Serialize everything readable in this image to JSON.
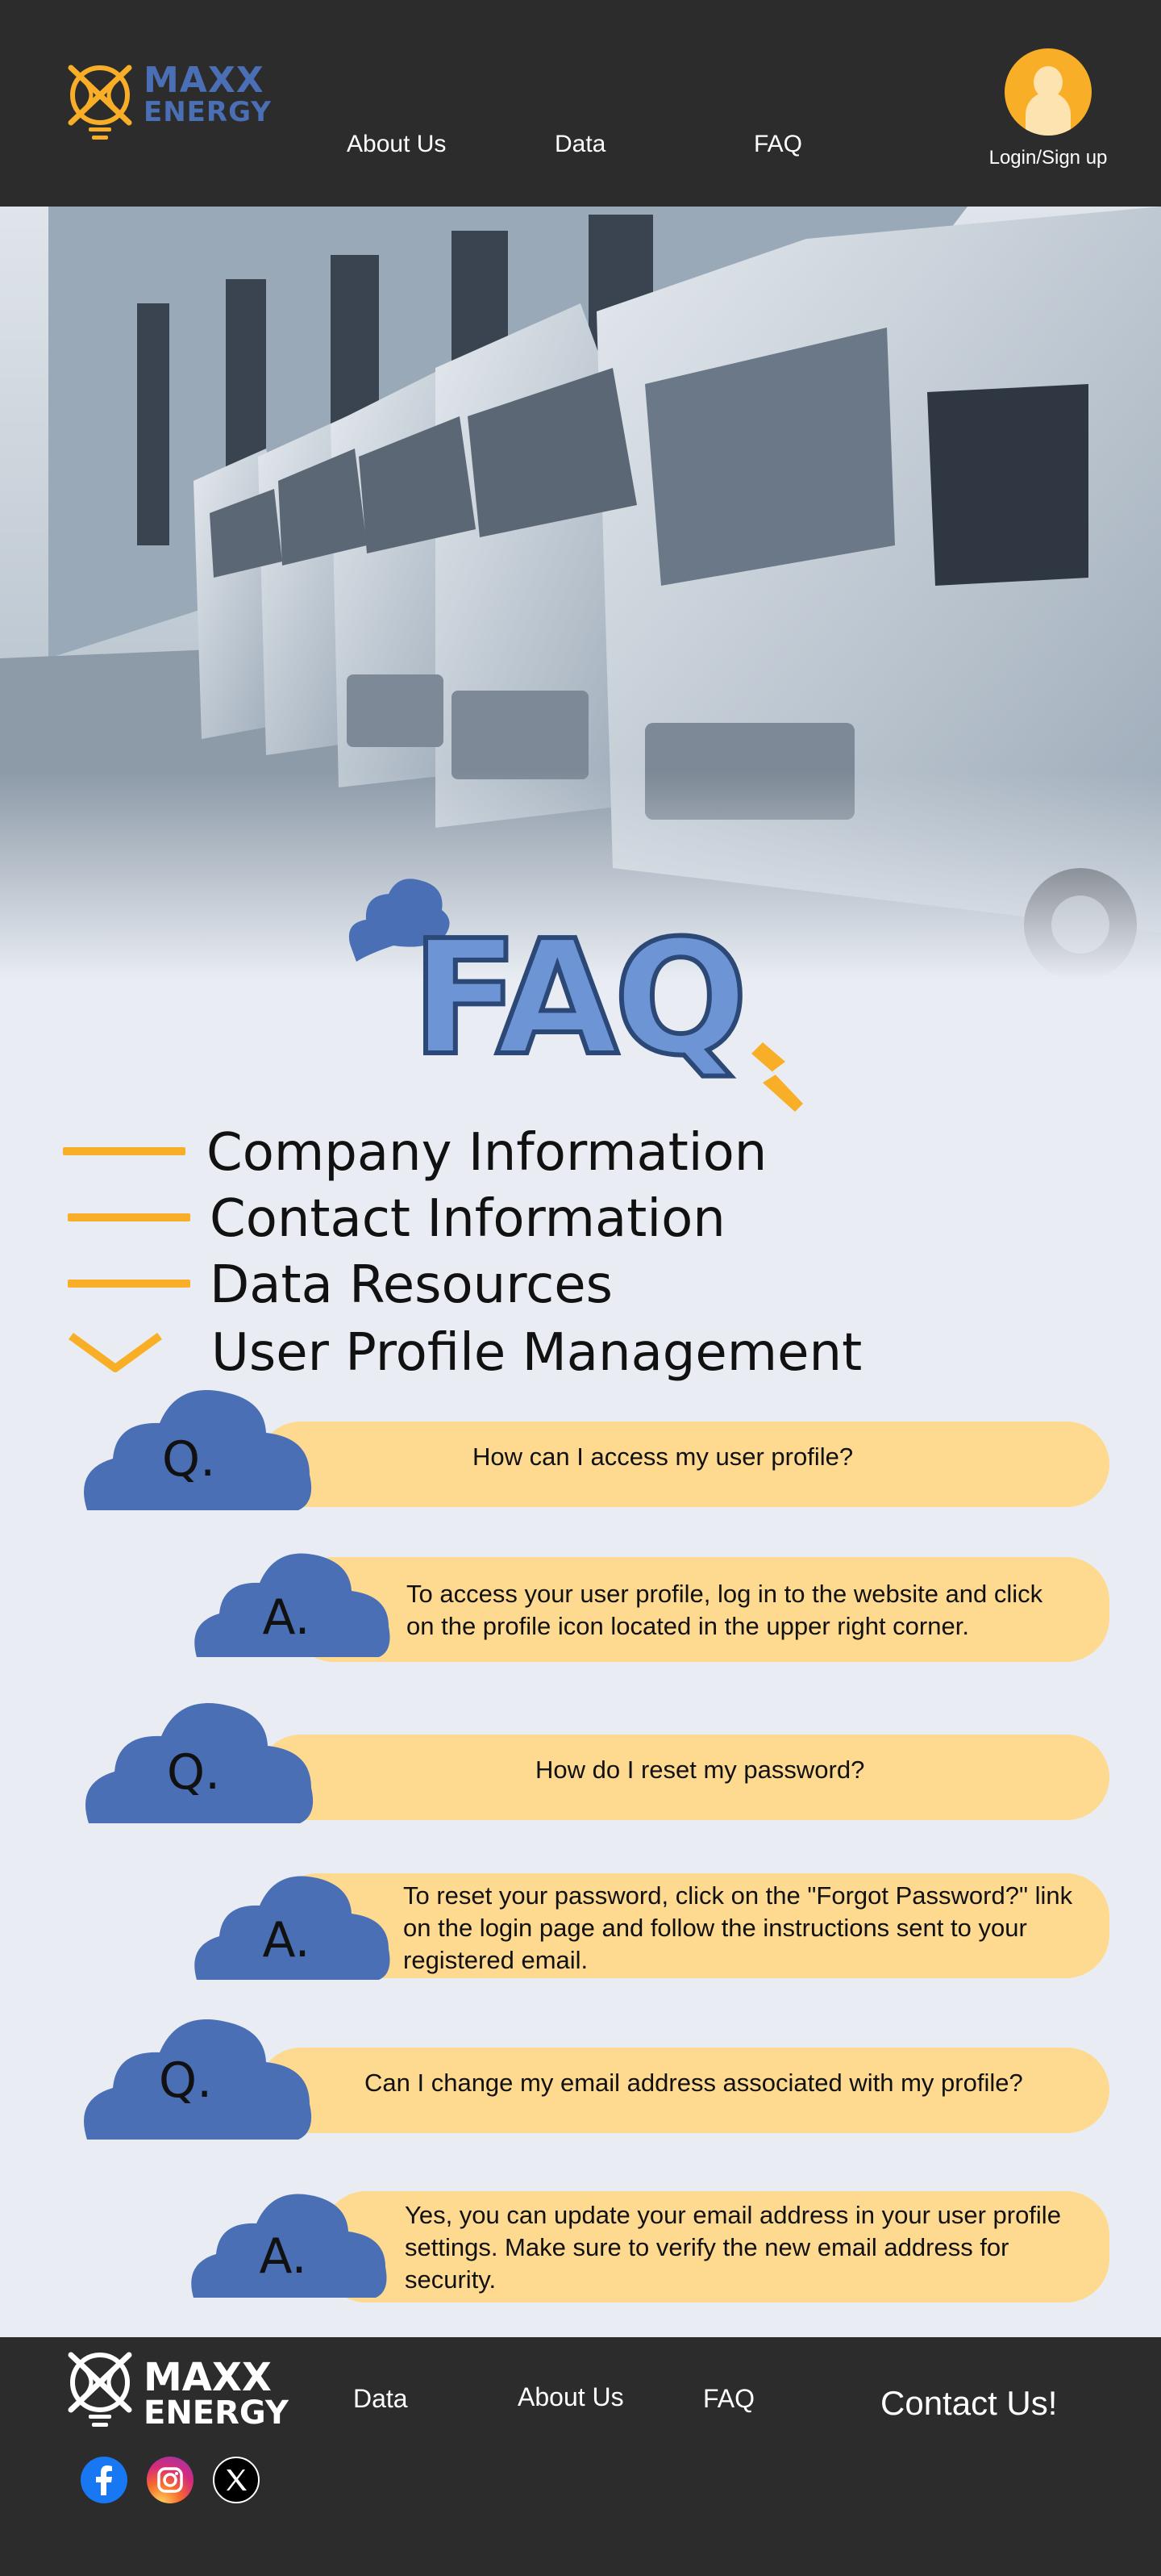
{
  "header": {
    "logo": {
      "line1": "MAXX",
      "line2": "ENERGY"
    },
    "nav": [
      "About Us",
      "Data",
      "FAQ"
    ],
    "login_label": "Login/Sign up"
  },
  "faq_title": "FAQ",
  "categories": [
    {
      "label": "Company Information",
      "state": "collapsed"
    },
    {
      "label": "Contact Information",
      "state": "collapsed"
    },
    {
      "label": "Data Resources",
      "state": "collapsed"
    },
    {
      "label": "User Profile Management",
      "state": "expanded"
    }
  ],
  "qa": [
    {
      "q_marker": "Q.",
      "question": "How can I access my user profile?",
      "a_marker": "A.",
      "answer": "To access your user profile, log in to the website and click on the profile icon located in the upper right corner."
    },
    {
      "q_marker": "Q.",
      "question": "How do I reset my password?",
      "a_marker": "A.",
      "answer": "To reset your password, click on the \"Forgot Password?\" link on the login page and follow the instructions sent to your registered email."
    },
    {
      "q_marker": "Q.",
      "question": "Can I change my email address associated with my profile?",
      "a_marker": "A.",
      "answer": "Yes, you can update your email address in your user profile settings. Make sure to verify the new email address for security."
    }
  ],
  "footer": {
    "logo": {
      "line1": "MAXX",
      "line2": "ENERGY"
    },
    "nav": [
      "Data",
      "About Us",
      "FAQ"
    ],
    "contact": "Contact Us!",
    "social": [
      {
        "icon": "facebook-icon",
        "color": "#1877f2"
      },
      {
        "icon": "instagram-icon",
        "color": "#e1306c"
      },
      {
        "icon": "x-icon",
        "color": "#000000"
      }
    ]
  },
  "colors": {
    "dark": "#2c2c2c",
    "accent_orange": "#f9ae27",
    "brand_blue": "#4a6fb5",
    "pill": "#fed990",
    "background": "#e9edf3"
  }
}
